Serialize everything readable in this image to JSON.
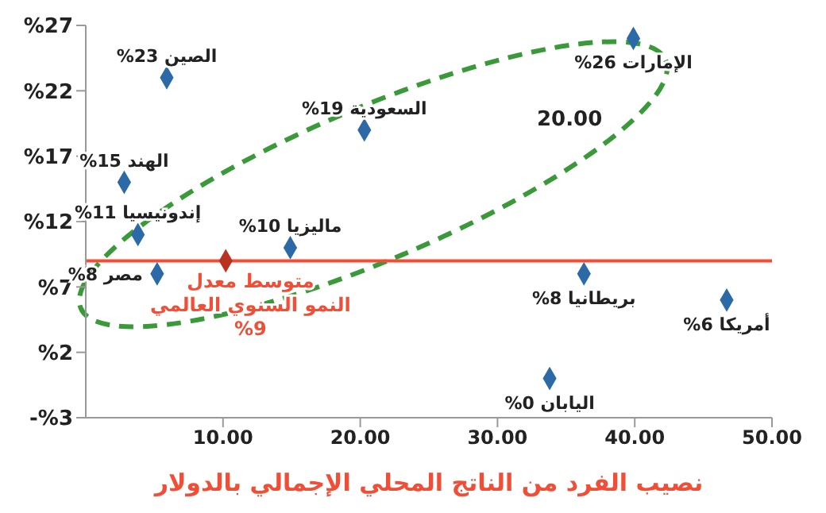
{
  "chart_data": {
    "type": "scatter",
    "xlabel": "نصيب الفرد من الناتج المحلي الإجمالي بالدولار",
    "marker": "diamond",
    "x": [
      5.9,
      2.8,
      3.8,
      5.2,
      14.9,
      20.3,
      39.9,
      10.2,
      36.3,
      46.7,
      33.8
    ],
    "series": [
      {
        "values": [
          23,
          15,
          11,
          8,
          10,
          19,
          26,
          9,
          8,
          6,
          0
        ],
        "colors": [
          "#2b6aa6",
          "#2b6aa6",
          "#2b6aa6",
          "#2b6aa6",
          "#2b6aa6",
          "#2b6aa6",
          "#2b6aa6",
          "#b8321f",
          "#2b6aa6",
          "#2b6aa6",
          "#2b6aa6"
        ],
        "value_labels": [
          "%23 الصين",
          "%15 الهند",
          "%11 إندونيسيا",
          "%8 مصر",
          "%10 ماليزيا",
          "%19 السعودية",
          "%26 الإمارات",
          null,
          "%8 بريطانيا",
          "%6 أمريكا",
          "%0 اليابان"
        ]
      }
    ],
    "xlim": [
      0,
      50
    ],
    "xticks": [
      {
        "value": 10,
        "label": "10.00"
      },
      {
        "value": 20,
        "label": "20.00"
      },
      {
        "value": 30,
        "label": "30.00"
      },
      {
        "value": 40,
        "label": "40.00"
      },
      {
        "value": 50,
        "label": "50.00"
      }
    ],
    "ylim": [
      -3,
      27
    ],
    "yticks": [
      {
        "value": -3,
        "label": "-%3"
      },
      {
        "value": 2,
        "label": "%2"
      },
      {
        "value": 7,
        "label": "%7"
      },
      {
        "value": 12,
        "label": "%12"
      },
      {
        "value": 17,
        "label": "%17"
      },
      {
        "value": 22,
        "label": "%22"
      },
      {
        "value": 27,
        "label": "%27"
      }
    ],
    "ref_lines": [
      {
        "axis": "y",
        "value": 9,
        "color": "#f04e37",
        "label": "متوسط معدل\nالنمو السنوي العالمي\n%9"
      }
    ],
    "annotations": [
      "20.00"
    ]
  }
}
